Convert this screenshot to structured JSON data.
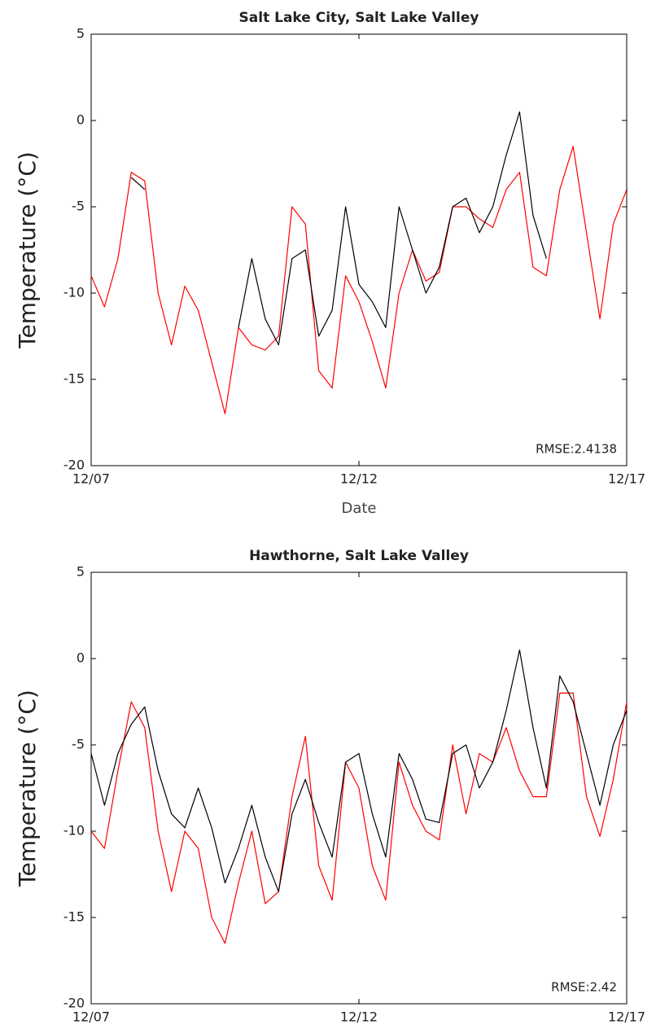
{
  "chart_data": [
    {
      "type": "line",
      "title": "Salt Lake City, Salt Lake Valley",
      "y_label": "Temperature (°C)",
      "x_label": "Date",
      "annotation": "RMSE:2.4138",
      "xlim": [
        0,
        10
      ],
      "xticks": [
        {
          "value": 0,
          "label": "12/07"
        },
        {
          "value": 5,
          "label": "12/12"
        },
        {
          "value": 10,
          "label": "12/17"
        }
      ],
      "ylim": [
        -20,
        5
      ],
      "yticks": [
        -20,
        -15,
        -10,
        -5,
        0,
        5
      ],
      "x": [
        0,
        0.25,
        0.5,
        0.75,
        1,
        1.25,
        1.5,
        1.75,
        2,
        2.25,
        2.5,
        2.75,
        3,
        3.25,
        3.5,
        3.75,
        4,
        4.25,
        4.5,
        4.75,
        5,
        5.25,
        5.5,
        5.75,
        6,
        6.25,
        6.5,
        6.75,
        7,
        7.25,
        7.5,
        7.75,
        8,
        8.25,
        8.5,
        8.75,
        9,
        9.25,
        9.5,
        9.75,
        10
      ],
      "series": [
        {
          "color": "#ff0000",
          "values": [
            -9,
            -10.8,
            -8,
            -3,
            -3.5,
            -10,
            -13,
            -9.6,
            -11,
            -14,
            -17,
            -12,
            -13,
            -13.3,
            -12.5,
            -5,
            -6,
            -14.5,
            -15.5,
            -9,
            -10.5,
            -12.8,
            -15.5,
            -10,
            -7.5,
            -9.3,
            -8.8,
            -5,
            -5,
            -5.7,
            -6.2,
            -4,
            -3,
            -8.5,
            -9,
            -4,
            -1.5,
            -6.5,
            -11.5,
            -6,
            -4
          ]
        },
        {
          "color": "#000000",
          "values": [
            null,
            null,
            null,
            -3.3,
            -4,
            null,
            null,
            null,
            null,
            null,
            null,
            -12,
            -8,
            -11.5,
            -13,
            -8,
            -7.5,
            -12.5,
            -11,
            -5,
            -9.5,
            -10.5,
            -12,
            -5,
            -7.5,
            -10,
            -8.5,
            -5,
            -4.5,
            -6.5,
            -5,
            -2,
            0.5,
            -5.5,
            -8,
            null,
            null,
            null,
            null,
            null,
            -4
          ]
        }
      ]
    },
    {
      "type": "line",
      "title": "Hawthorne, Salt Lake Valley",
      "y_label": "Temperature (°C)",
      "annotation": "RMSE:2.42",
      "xlim": [
        0,
        10
      ],
      "xticks": [
        {
          "value": 0,
          "label": "12/07"
        },
        {
          "value": 5,
          "label": "12/12"
        },
        {
          "value": 10,
          "label": "12/17"
        }
      ],
      "ylim": [
        -20,
        5
      ],
      "yticks": [
        -20,
        -15,
        -10,
        -5,
        0,
        5
      ],
      "x": [
        0,
        0.25,
        0.5,
        0.75,
        1,
        1.25,
        1.5,
        1.75,
        2,
        2.25,
        2.5,
        2.75,
        3,
        3.25,
        3.5,
        3.75,
        4,
        4.25,
        4.5,
        4.75,
        5,
        5.25,
        5.5,
        5.75,
        6,
        6.25,
        6.5,
        6.75,
        7,
        7.25,
        7.5,
        7.75,
        8,
        8.25,
        8.5,
        8.75,
        9,
        9.25,
        9.5,
        9.75,
        10
      ],
      "series": [
        {
          "color": "#ff0000",
          "values": [
            -10,
            -11,
            -6.5,
            -2.5,
            -4,
            -10,
            -13.5,
            -10,
            -11,
            -15,
            -16.5,
            -13,
            -10,
            -14.2,
            -13.5,
            -8,
            -4.5,
            -12,
            -14,
            -6,
            -7.5,
            -12,
            -14,
            -6,
            -8.5,
            -10,
            -10.5,
            -5,
            -9,
            -5.5,
            -6,
            -4,
            -6.5,
            -8,
            -8,
            -2,
            -2,
            -8,
            -10.3,
            -7,
            -2.5
          ]
        },
        {
          "color": "#000000",
          "values": [
            -5.5,
            -8.5,
            -5.5,
            -3.8,
            -2.8,
            -6.5,
            -9,
            -9.8,
            -7.5,
            -9.8,
            -13,
            -11,
            -8.5,
            -11.5,
            -13.5,
            -9,
            -7,
            -9.5,
            -11.5,
            -6,
            -5.5,
            -9,
            -11.5,
            -5.5,
            -7,
            -9.3,
            -9.5,
            -5.5,
            -5,
            -7.5,
            -6,
            -3,
            0.5,
            -4,
            -7.5,
            -1,
            -2.5,
            -5.5,
            -8.5,
            -5,
            -3
          ]
        }
      ]
    }
  ]
}
